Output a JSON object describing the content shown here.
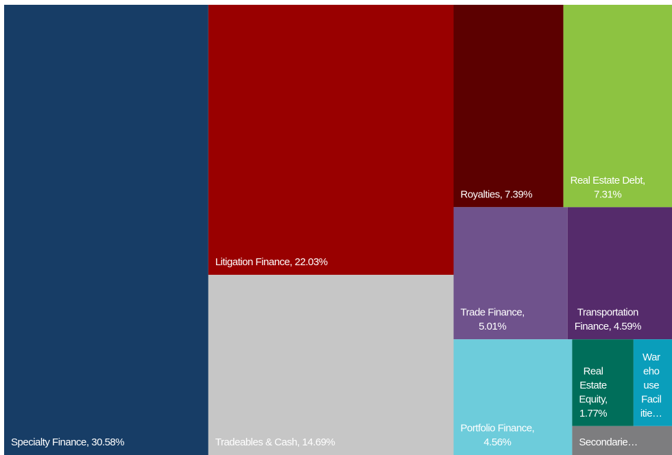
{
  "chart_data": {
    "type": "treemap",
    "labels": [
      [
        "Specialty Finance, 30.58%"
      ],
      [
        "Litigation Finance, 22.03%"
      ],
      [
        "Tradeables & Cash, 14.69%"
      ],
      [
        "Royalties, 7.39%"
      ],
      [
        "Real Estate Debt,",
        "7.31%"
      ],
      [
        "Trade Finance,",
        "5.01%"
      ],
      [
        "Transportation",
        "Finance, 4.59%"
      ],
      [
        "Portfolio Finance,",
        "4.56%"
      ],
      [
        "Real",
        "Estate",
        "Equity,",
        "1.77%"
      ],
      [
        "War",
        "eho",
        "use",
        "Facil",
        "itie…"
      ],
      [
        "Secondarie…"
      ]
    ],
    "values": [
      30.58,
      22.03,
      14.69,
      7.39,
      7.31,
      5.01,
      4.59,
      4.56,
      1.77,
      1.11,
      0.96
    ],
    "colors": [
      "#173d66",
      "#990000",
      "#c6c6c6",
      "#5c0000",
      "#8dc341",
      "#6f528c",
      "#552b6b",
      "#6dccdb",
      "#006e5a",
      "#0a9ebb",
      "#7d7d7f"
    ]
  }
}
